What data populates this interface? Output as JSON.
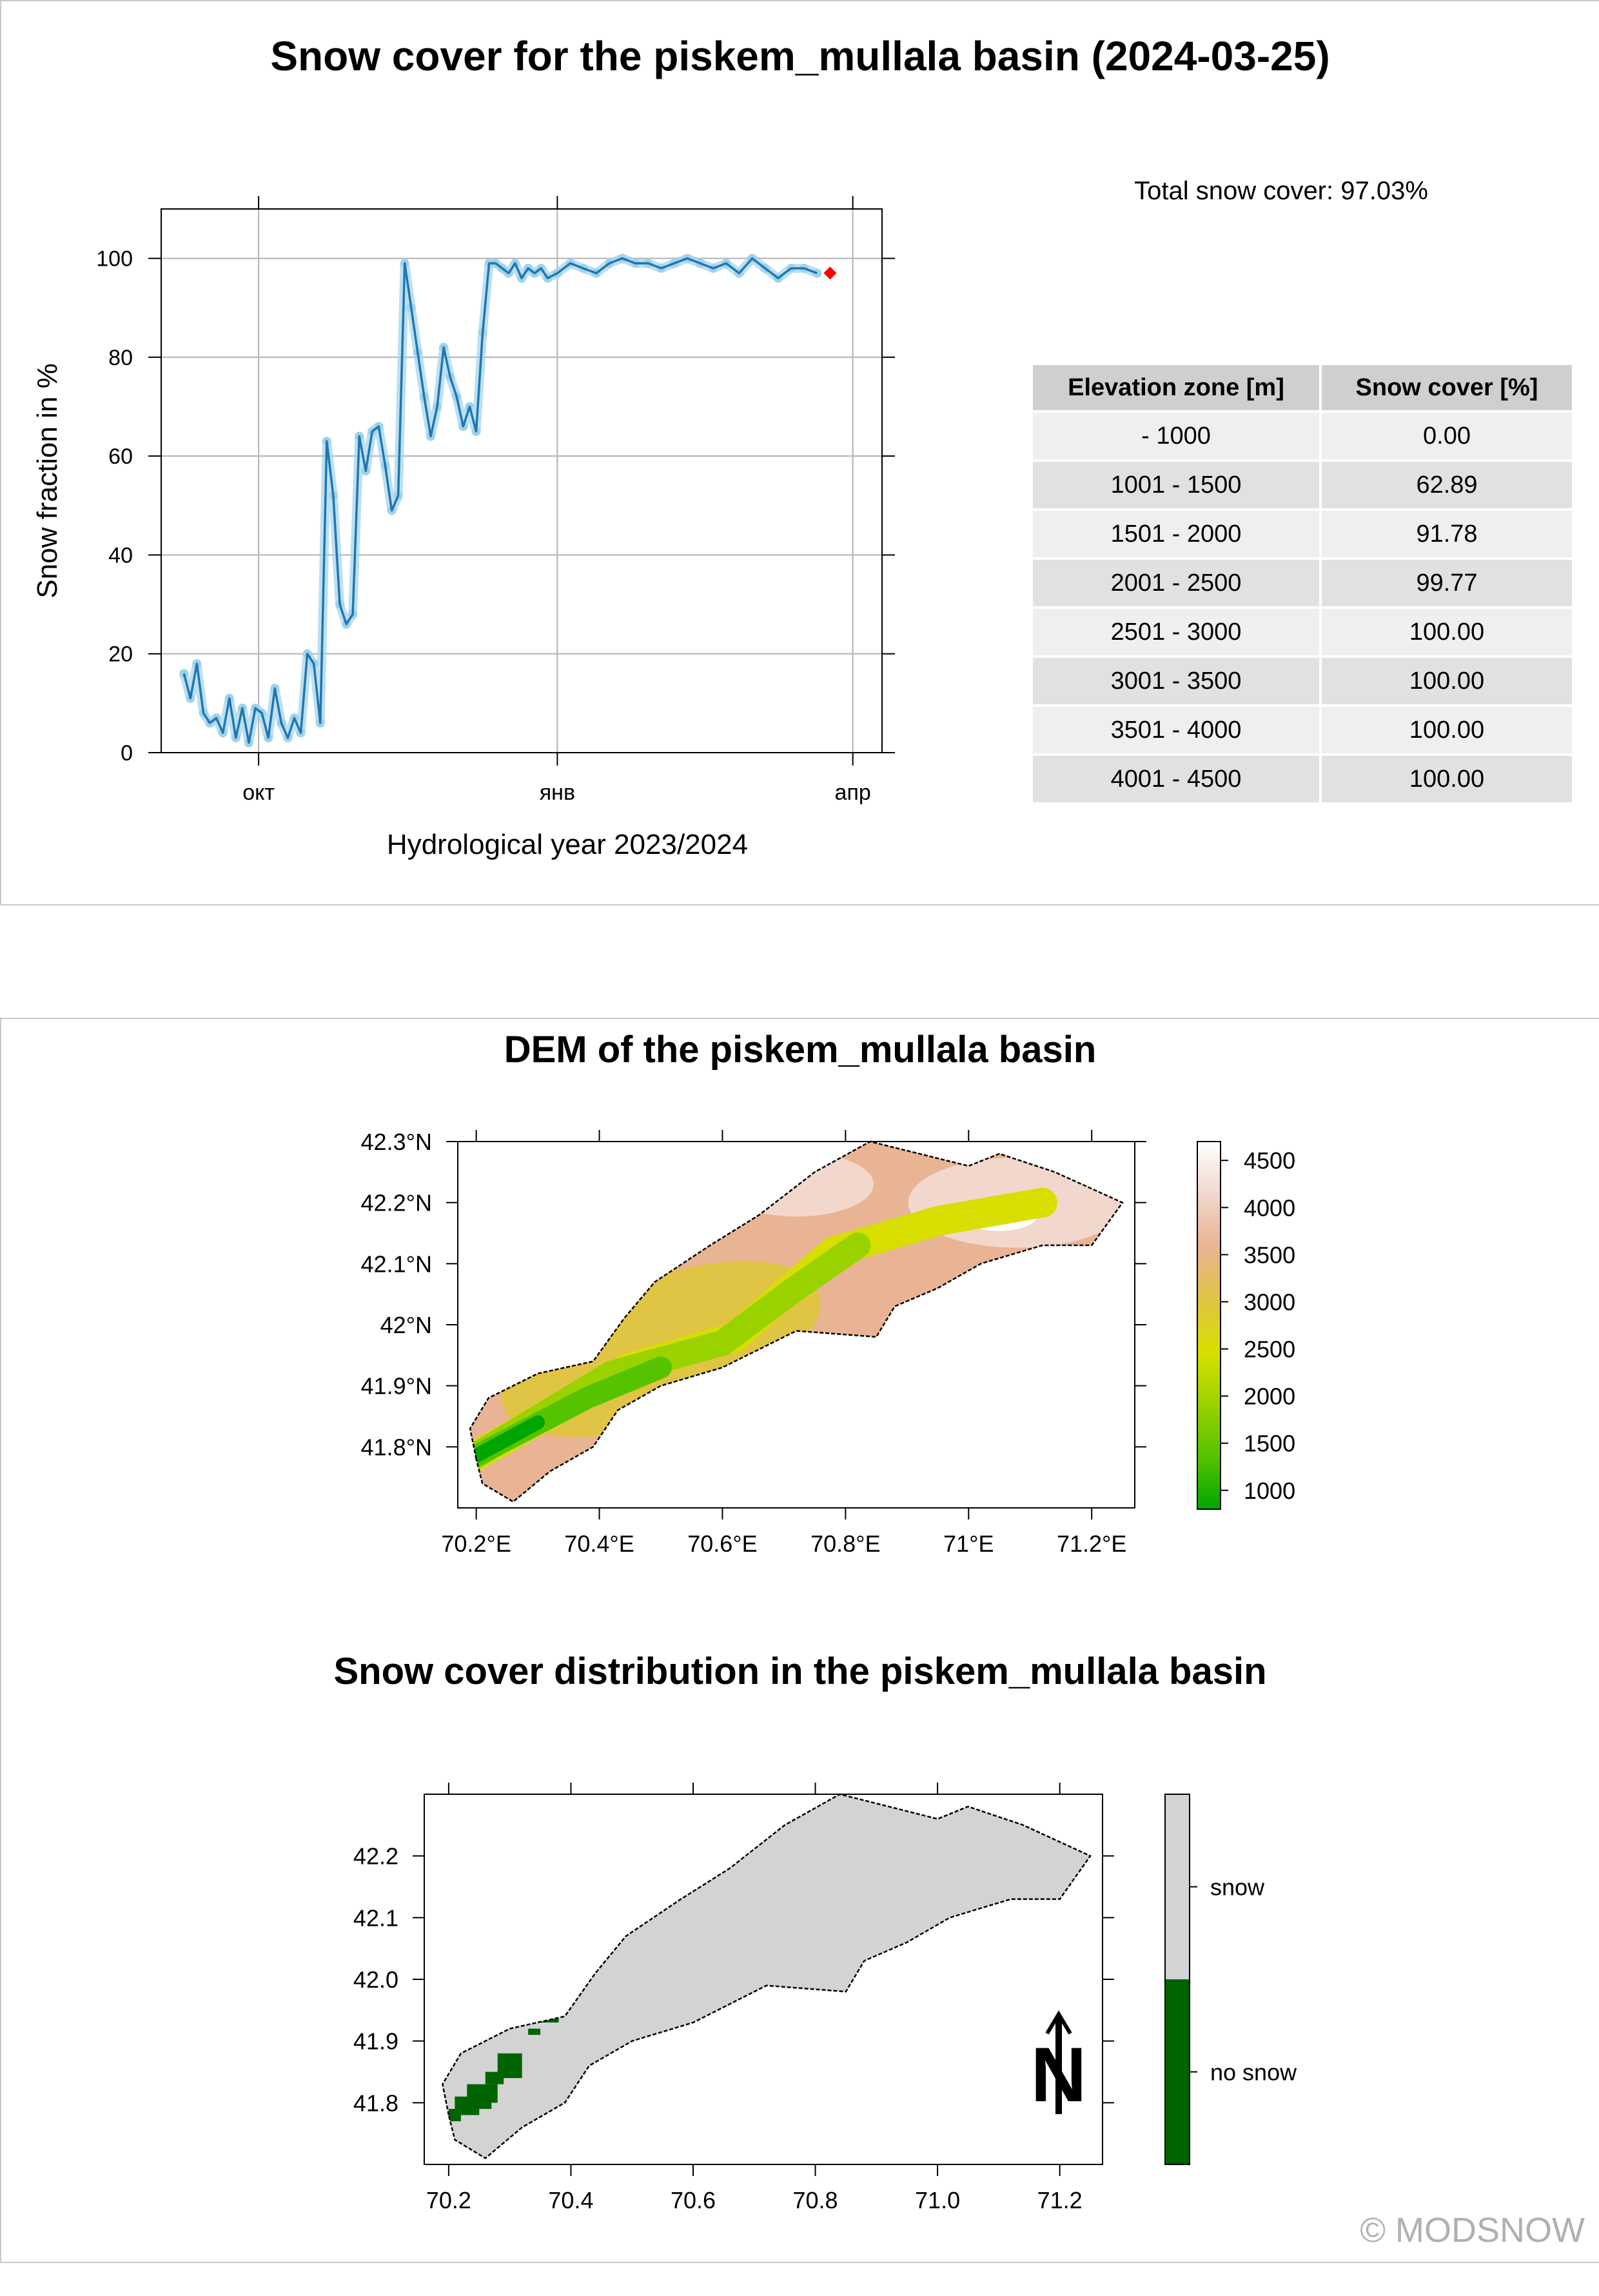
{
  "header": {
    "title": "Snow cover for the piskem_mullala basin (2024-03-25)"
  },
  "summary": {
    "total_snow_cover": "Total snow cover: 97.03%"
  },
  "elevation_table": {
    "headers": [
      "Elevation zone [m]",
      "Snow cover [%]"
    ],
    "rows": [
      [
        "- 1000",
        "0.00"
      ],
      [
        "1001 - 1500",
        "62.89"
      ],
      [
        "1501 - 2000",
        "91.78"
      ],
      [
        "2001 - 2500",
        "99.77"
      ],
      [
        "2501 - 3000",
        "100.00"
      ],
      [
        "3001 - 3500",
        "100.00"
      ],
      [
        "3501 - 4000",
        "100.00"
      ],
      [
        "4001 - 4500",
        "100.00"
      ]
    ]
  },
  "dem_section": {
    "title": "DEM of the piskem_mullala basin"
  },
  "snow_section": {
    "title": "Snow cover distribution in the piskem_mullala basin"
  },
  "copyright": "© MODSNOW",
  "chart_data": [
    {
      "type": "line",
      "title": "",
      "xlabel": "Hydrological year 2023/2024",
      "ylabel": "Snow fraction in %",
      "ylim": [
        0,
        110
      ],
      "xlim": [
        "2023-09-01",
        "2024-04-10"
      ],
      "x_ticks": [
        {
          "label": "окт",
          "date": "2023-10-01"
        },
        {
          "label": "янв",
          "date": "2024-01-01"
        },
        {
          "label": "апр",
          "date": "2024-04-01"
        }
      ],
      "y_ticks": [
        0,
        20,
        40,
        60,
        80,
        100
      ],
      "grid": true,
      "line_color": "#1f77b4",
      "point_color": "#9fd3ea",
      "highlight_color": "#ff0000",
      "series": [
        {
          "x": [
            "2023-09-08",
            "2023-09-10",
            "2023-09-12",
            "2023-09-14",
            "2023-09-16",
            "2023-09-18",
            "2023-09-20",
            "2023-09-22",
            "2023-09-24",
            "2023-09-26",
            "2023-09-28",
            "2023-09-30",
            "2023-10-02",
            "2023-10-04",
            "2023-10-06",
            "2023-10-08",
            "2023-10-10",
            "2023-10-12",
            "2023-10-14",
            "2023-10-16",
            "2023-10-18",
            "2023-10-20",
            "2023-10-22",
            "2023-10-24",
            "2023-10-26",
            "2023-10-28",
            "2023-10-30",
            "2023-11-01",
            "2023-11-03",
            "2023-11-05",
            "2023-11-07",
            "2023-11-09",
            "2023-11-11",
            "2023-11-13",
            "2023-11-15",
            "2023-11-17",
            "2023-11-19",
            "2023-11-21",
            "2023-11-23",
            "2023-11-25",
            "2023-11-27",
            "2023-11-29",
            "2023-12-01",
            "2023-12-03",
            "2023-12-05",
            "2023-12-07",
            "2023-12-09",
            "2023-12-11",
            "2023-12-13",
            "2023-12-15",
            "2023-12-17",
            "2023-12-19",
            "2023-12-21",
            "2023-12-23",
            "2023-12-25",
            "2023-12-27",
            "2023-12-29",
            "2024-01-01",
            "2024-01-05",
            "2024-01-09",
            "2024-01-13",
            "2024-01-17",
            "2024-01-21",
            "2024-01-25",
            "2024-01-29",
            "2024-02-02",
            "2024-02-06",
            "2024-02-10",
            "2024-02-14",
            "2024-02-18",
            "2024-02-22",
            "2024-02-26",
            "2024-03-01",
            "2024-03-05",
            "2024-03-09",
            "2024-03-13",
            "2024-03-17",
            "2024-03-21"
          ],
          "values": [
            16,
            11,
            18,
            8,
            6,
            7,
            4,
            11,
            3,
            9,
            2,
            9,
            8,
            3,
            13,
            6,
            3,
            7,
            4,
            20,
            18,
            6,
            63,
            52,
            30,
            26,
            28,
            64,
            57,
            65,
            66,
            58,
            49,
            52,
            99,
            90,
            81,
            72,
            64,
            70,
            82,
            76,
            72,
            66,
            70,
            65,
            85,
            99,
            99,
            98,
            97,
            99,
            96,
            98,
            97,
            98,
            96,
            97,
            99,
            98,
            97,
            99,
            100,
            99,
            99,
            98,
            99,
            100,
            99,
            98,
            99,
            97,
            100,
            98,
            96,
            98,
            98,
            97
          ],
          "highlight": {
            "x": "2024-03-25",
            "value": 97.03
          }
        }
      ]
    },
    {
      "type": "heatmap",
      "subtype": "map",
      "title": "DEM of the piskem_mullala basin",
      "x_ticks": [
        "70.2°E",
        "70.4°E",
        "70.6°E",
        "70.8°E",
        "71°E",
        "71.2°E"
      ],
      "x_tick_values": [
        70.2,
        70.4,
        70.6,
        70.8,
        71.0,
        71.2
      ],
      "y_ticks": [
        "41.8°N",
        "41.9°N",
        "42°N",
        "42.1°N",
        "42.2°N",
        "42.3°N"
      ],
      "y_tick_values": [
        41.8,
        41.9,
        42.0,
        42.1,
        42.2,
        42.3
      ],
      "xlim": [
        70.17,
        71.27
      ],
      "ylim": [
        41.7,
        42.3
      ],
      "legend": {
        "position": "right",
        "labels": [
          "4500",
          "4000",
          "3500",
          "3000",
          "2500",
          "2000",
          "1500",
          "1000"
        ],
        "colors": [
          "#ffffff",
          "#f2d7cc",
          "#e8b493",
          "#e0c443",
          "#d8df00",
          "#9ad200",
          "#55c300",
          "#00a600"
        ],
        "min": 800,
        "max": 4700
      },
      "outline_lonlat": [
        [
          70.2,
          41.78
        ],
        [
          70.19,
          41.83
        ],
        [
          70.22,
          41.88
        ],
        [
          70.3,
          41.92
        ],
        [
          70.39,
          41.94
        ],
        [
          70.44,
          42.01
        ],
        [
          70.49,
          42.07
        ],
        [
          70.58,
          42.13
        ],
        [
          70.66,
          42.18
        ],
        [
          70.75,
          42.25
        ],
        [
          70.84,
          42.3
        ],
        [
          70.92,
          42.28
        ],
        [
          71.0,
          42.26
        ],
        [
          71.05,
          42.28
        ],
        [
          71.14,
          42.25
        ],
        [
          71.25,
          42.2
        ],
        [
          71.2,
          42.13
        ],
        [
          71.12,
          42.13
        ],
        [
          71.02,
          42.1
        ],
        [
          70.95,
          42.06
        ],
        [
          70.88,
          42.03
        ],
        [
          70.85,
          41.98
        ],
        [
          70.72,
          41.99
        ],
        [
          70.6,
          41.93
        ],
        [
          70.5,
          41.9
        ],
        [
          70.43,
          41.86
        ],
        [
          70.39,
          41.8
        ],
        [
          70.32,
          41.76
        ],
        [
          70.26,
          41.71
        ],
        [
          70.21,
          41.74
        ]
      ]
    },
    {
      "type": "heatmap",
      "subtype": "map",
      "title": "Snow cover distribution in the piskem_mullala basin",
      "x_ticks": [
        "70.2",
        "70.4",
        "70.6",
        "70.8",
        "71.0",
        "71.2"
      ],
      "x_tick_values": [
        70.2,
        70.4,
        70.6,
        70.8,
        71.0,
        71.2
      ],
      "y_ticks": [
        "41.8",
        "41.9",
        "42.0",
        "42.1",
        "42.2"
      ],
      "y_tick_values": [
        41.8,
        41.9,
        42.0,
        42.1,
        42.2
      ],
      "xlim": [
        70.16,
        71.27
      ],
      "ylim": [
        41.7,
        42.3
      ],
      "legend": {
        "position": "right",
        "categories": [
          {
            "label": "snow",
            "color": "#d3d3d3"
          },
          {
            "label": "no snow",
            "color": "#006400"
          }
        ]
      },
      "no_snow_patches_lonlat": [
        [
          70.35,
          41.93,
          0.03,
          0.02
        ],
        [
          70.37,
          41.94,
          0.02,
          0.02
        ],
        [
          70.33,
          41.91,
          0.02,
          0.01
        ],
        [
          70.28,
          41.84,
          0.04,
          0.04
        ],
        [
          70.26,
          41.83,
          0.03,
          0.02
        ],
        [
          70.23,
          41.8,
          0.05,
          0.03
        ],
        [
          70.21,
          41.78,
          0.04,
          0.03
        ],
        [
          70.24,
          41.79,
          0.03,
          0.02
        ],
        [
          70.2,
          41.77,
          0.02,
          0.02
        ]
      ],
      "north_arrow": "N"
    }
  ]
}
